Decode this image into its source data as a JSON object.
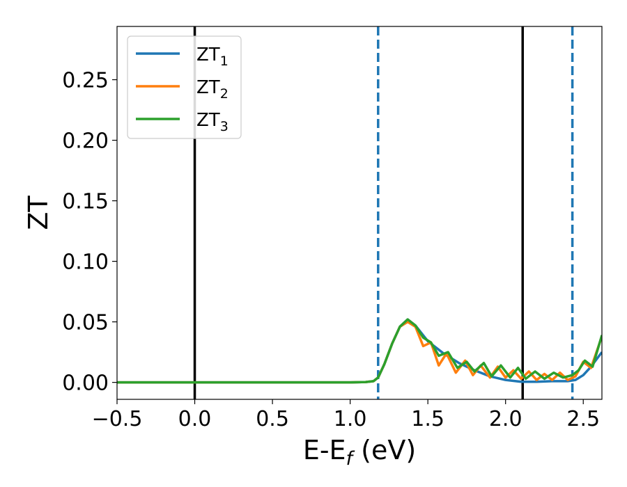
{
  "chart_data": {
    "type": "line",
    "xlabel": "E-E",
    "xlabel_sub": "f",
    "xlabel_unit": " (eV)",
    "ylabel": "ZT",
    "xlim": [
      -0.5,
      2.62
    ],
    "ylim": [
      -0.014,
      0.294
    ],
    "xticks": [
      -0.5,
      0.0,
      0.5,
      1.0,
      1.5,
      2.0,
      2.5
    ],
    "xtick_labels": [
      "−0.5",
      "0.0",
      "0.5",
      "1.0",
      "1.5",
      "2.0",
      "2.5"
    ],
    "yticks": [
      0.0,
      0.05,
      0.1,
      0.15,
      0.2,
      0.25
    ],
    "ytick_labels": [
      "0.00",
      "0.05",
      "0.10",
      "0.15",
      "0.20",
      "0.25"
    ],
    "grid": false,
    "legend_position": "top-left",
    "vertical_lines": [
      {
        "x": 0.0,
        "style": "solid",
        "color": "#000000"
      },
      {
        "x": 2.11,
        "style": "solid",
        "color": "#000000"
      },
      {
        "x": 1.18,
        "style": "dashed",
        "color": "#1f77b4"
      },
      {
        "x": 2.43,
        "style": "dashed",
        "color": "#1f77b4"
      }
    ],
    "series": [
      {
        "name": "ZT",
        "sub": "1",
        "color": "#1f77b4",
        "x": [
          -0.5,
          1.0,
          1.1,
          1.15,
          1.18,
          1.22,
          1.27,
          1.32,
          1.37,
          1.42,
          1.5,
          1.6,
          1.7,
          1.8,
          1.9,
          2.0,
          2.1,
          2.2,
          2.3,
          2.4,
          2.45,
          2.5,
          2.55,
          2.62
        ],
        "y": [
          0.0,
          0.0,
          0.0003,
          0.001,
          0.004,
          0.015,
          0.032,
          0.046,
          0.052,
          0.047,
          0.034,
          0.024,
          0.016,
          0.01,
          0.005,
          0.002,
          0.0005,
          0.0005,
          0.001,
          0.001,
          0.002,
          0.006,
          0.013,
          0.025
        ]
      },
      {
        "name": "ZT",
        "sub": "2",
        "color": "#ff7f0e",
        "x": [
          -0.5,
          1.0,
          1.1,
          1.15,
          1.18,
          1.22,
          1.27,
          1.32,
          1.37,
          1.42,
          1.47,
          1.52,
          1.57,
          1.62,
          1.68,
          1.74,
          1.79,
          1.84,
          1.9,
          1.95,
          2.0,
          2.05,
          2.1,
          2.15,
          2.2,
          2.25,
          2.3,
          2.35,
          2.4,
          2.45,
          2.5,
          2.55,
          2.62
        ],
        "y": [
          0.0,
          0.0,
          0.0003,
          0.001,
          0.004,
          0.015,
          0.032,
          0.046,
          0.05,
          0.046,
          0.03,
          0.033,
          0.014,
          0.024,
          0.008,
          0.018,
          0.006,
          0.014,
          0.004,
          0.013,
          0.004,
          0.01,
          0.003,
          0.009,
          0.002,
          0.007,
          0.002,
          0.008,
          0.002,
          0.005,
          0.017,
          0.012,
          0.038
        ]
      },
      {
        "name": "ZT",
        "sub": "3",
        "color": "#2ca02c",
        "x": [
          -0.5,
          1.0,
          1.1,
          1.15,
          1.18,
          1.22,
          1.27,
          1.32,
          1.37,
          1.42,
          1.47,
          1.52,
          1.57,
          1.63,
          1.69,
          1.75,
          1.8,
          1.86,
          1.91,
          1.97,
          2.03,
          2.08,
          2.13,
          2.19,
          2.25,
          2.31,
          2.37,
          2.43,
          2.47,
          2.51,
          2.56,
          2.62
        ],
        "y": [
          0.0,
          0.0,
          0.0003,
          0.001,
          0.004,
          0.015,
          0.032,
          0.046,
          0.052,
          0.047,
          0.037,
          0.033,
          0.022,
          0.025,
          0.012,
          0.017,
          0.009,
          0.016,
          0.005,
          0.014,
          0.004,
          0.012,
          0.003,
          0.009,
          0.003,
          0.008,
          0.004,
          0.006,
          0.01,
          0.018,
          0.013,
          0.039
        ]
      }
    ]
  }
}
